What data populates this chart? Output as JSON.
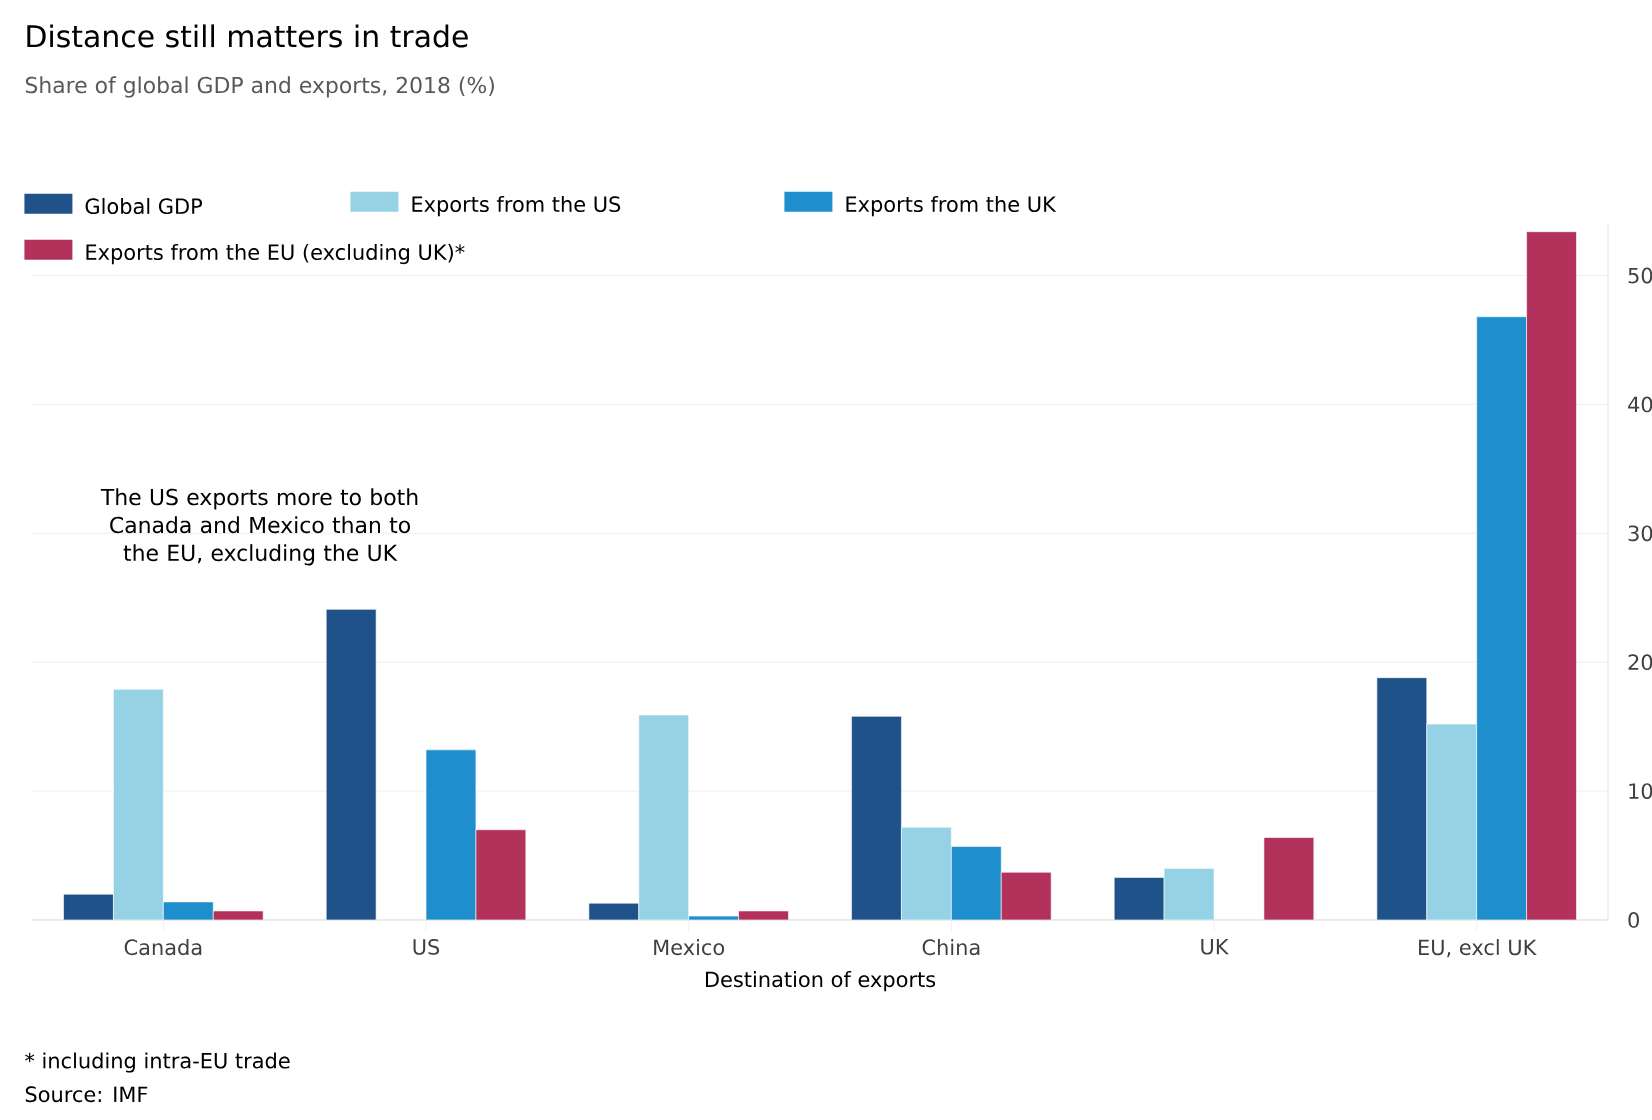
{
  "chart_data": {
    "type": "bar",
    "title": "Distance still matters in trade",
    "subtitle": "Share of global GDP and exports, 2018 (%)",
    "xlabel": "Destination of exports",
    "categories": [
      "Canada",
      "US",
      "Mexico",
      "China",
      "UK",
      "EU, excl UK"
    ],
    "series": [
      {
        "name": "Global GDP",
        "color": "#1f5289",
        "values": [
          2.0,
          24.1,
          1.3,
          15.8,
          3.3,
          18.8
        ]
      },
      {
        "name": "Exports from the US",
        "color": "#96d2e5",
        "values": [
          17.9,
          null,
          15.9,
          7.2,
          4.0,
          15.2
        ]
      },
      {
        "name": "Exports from the UK",
        "color": "#1f8ecd",
        "values": [
          1.4,
          13.2,
          0.3,
          5.7,
          null,
          46.8
        ]
      },
      {
        "name": "Exports from the EU (excluding UK)*",
        "color": "#b3325b",
        "values": [
          0.7,
          7.0,
          0.7,
          3.7,
          6.4,
          53.4
        ]
      }
    ],
    "ylim": [
      0,
      54
    ],
    "yticks": [
      0,
      10,
      20,
      30,
      40,
      50
    ],
    "grid": "y",
    "legend": "top",
    "annotations": [
      "The US exports more to both Canada and Mexico than to the EU, excluding the UK",
      "* including intra-EU trade",
      "Source: IMF"
    ]
  }
}
